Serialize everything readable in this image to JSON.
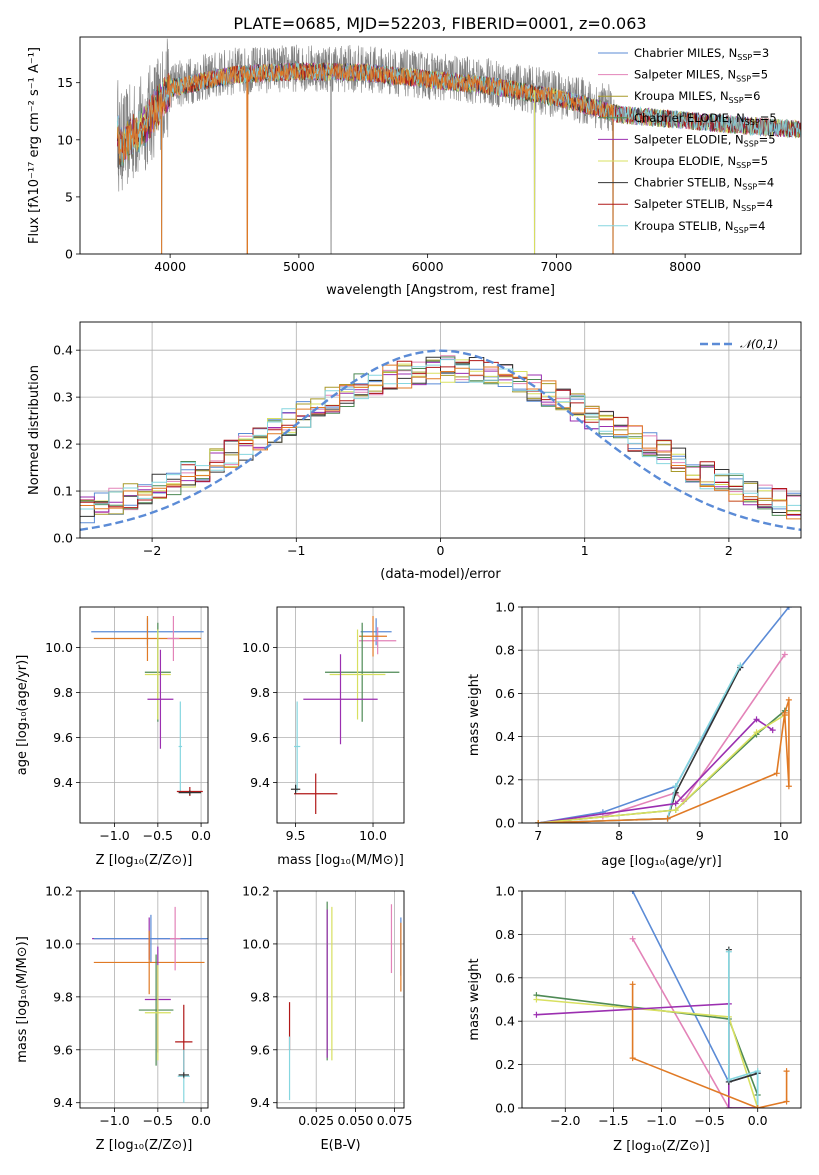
{
  "figure": {
    "title": "PLATE=0685, MJD=52203, FIBERID=0001, z=0.063"
  },
  "colors": {
    "Chabrier MILES": "#5b8bd6",
    "Salpeter MILES": "#e383b8",
    "Kroupa MILES": "#a89a2a",
    "Chabrier ELODIE": "#4e8a55",
    "Salpeter ELODIE": "#9b2fb0",
    "Kroupa ELODIE": "#d8e060",
    "Chabrier STELIB": "#333333",
    "Salpeter STELIB": "#b01818",
    "Kroupa STELIB": "#86d6df",
    "data": "#808080",
    "orange": "#e07a25"
  },
  "chart_data": [
    {
      "id": "spectrum",
      "type": "line",
      "xlabel": "wavelength [Angstrom, rest frame]",
      "ylabel": "Flux [fλ10⁻¹⁷ erg cm⁻² s⁻¹ A⁻¹]",
      "xlim": [
        3300,
        8900
      ],
      "ylim": [
        0,
        19
      ],
      "xticks": [
        4000,
        5000,
        6000,
        7000,
        8000
      ],
      "yticks": [
        0,
        5,
        10,
        15
      ],
      "legend_position": "top-right",
      "legend": [
        {
          "name": "Chabrier MILES, N",
          "sub": "SSP",
          "suffix": "=3",
          "color": "#5b8bd6"
        },
        {
          "name": "Salpeter MILES, N",
          "sub": "SSP",
          "suffix": "=5",
          "color": "#e383b8"
        },
        {
          "name": "Kroupa MILES, N",
          "sub": "SSP",
          "suffix": "=6",
          "color": "#a89a2a"
        },
        {
          "name": "Chabrier ELODIE, N",
          "sub": "SSP",
          "suffix": "=5",
          "color": "#4e8a55"
        },
        {
          "name": "Salpeter ELODIE, N",
          "sub": "SSP",
          "suffix": "=5",
          "color": "#9b2fb0"
        },
        {
          "name": "Kroupa ELODIE, N",
          "sub": "SSP",
          "suffix": "=5",
          "color": "#d8e060"
        },
        {
          "name": "Chabrier STELIB, N",
          "sub": "SSP",
          "suffix": "=4",
          "color": "#333333"
        },
        {
          "name": "Salpeter STELIB, N",
          "sub": "SSP",
          "suffix": "=4",
          "color": "#b01818"
        },
        {
          "name": "Kroupa STELIB, N",
          "sub": "SSP",
          "suffix": "=4",
          "color": "#86d6df"
        }
      ],
      "continuum": [
        [
          3600,
          9.5
        ],
        [
          3800,
          11.5
        ],
        [
          4000,
          14.8
        ],
        [
          4500,
          16.0
        ],
        [
          5000,
          16.3
        ],
        [
          5500,
          16.2
        ],
        [
          6000,
          15.6
        ],
        [
          6500,
          15.0
        ],
        [
          7000,
          14.0
        ],
        [
          7500,
          12.5
        ],
        [
          8000,
          12.0
        ],
        [
          8500,
          11.5
        ],
        [
          8900,
          11.2
        ]
      ],
      "data_range": [
        3590,
        7450
      ],
      "absorption": [
        [
          3934,
          0
        ],
        [
          4600,
          0
        ],
        [
          5250,
          0
        ],
        [
          6830,
          0
        ],
        [
          7440,
          0
        ]
      ]
    },
    {
      "id": "residuals",
      "type": "histogram",
      "xlabel": "(data-model)/error",
      "ylabel": "Normed distribution",
      "xlim": [
        -2.5,
        2.5
      ],
      "ylim": [
        0,
        0.46
      ],
      "xticks": [
        -2,
        -1,
        0,
        1,
        2
      ],
      "yticks": [
        0.0,
        0.1,
        0.2,
        0.3,
        0.4
      ],
      "legend": "𝒩(0,1)",
      "legend_position": "top-right",
      "grid": true,
      "bin_width": 0.1
    },
    {
      "id": "age-vs-Z",
      "type": "scatter",
      "xlabel": "Z [log₁₀(Z/Z⊙)]",
      "ylabel": "age  [log₁₀(age/yr)]",
      "xlim": [
        -1.4,
        0.08
      ],
      "ylim": [
        9.22,
        10.18
      ],
      "xticks": [
        -1.0,
        -0.5,
        0.0
      ],
      "yticks": [
        9.4,
        9.6,
        9.8,
        10.0
      ],
      "grid": true,
      "points": [
        {
          "x": -0.62,
          "y": 10.07,
          "xerr": 0.65,
          "yerr": 0.06,
          "color": "#5b8bd6"
        },
        {
          "x": -0.62,
          "y": 10.04,
          "xerr": 0.62,
          "yerr": 0.1,
          "color": "#e07a25"
        },
        {
          "x": -0.32,
          "y": 10.04,
          "xerr": 0.07,
          "yerr": 0.1,
          "color": "#e383b8"
        },
        {
          "x": -0.5,
          "y": 9.89,
          "xerr": 0.15,
          "yerr": 0.22,
          "color": "#4e8a55"
        },
        {
          "x": -0.5,
          "y": 9.88,
          "xerr": 0.15,
          "yerr": 0.2,
          "color": "#d8e060"
        },
        {
          "x": -0.47,
          "y": 9.77,
          "xerr": 0.15,
          "yerr": 0.22,
          "color": "#9b2fb0"
        },
        {
          "x": -0.24,
          "y": 9.56,
          "xerr": 0.02,
          "yerr": 0.2,
          "color": "#86d6df"
        },
        {
          "x": -0.13,
          "y": 9.36,
          "xerr": 0.15,
          "yerr": 0.02,
          "color": "#b01818"
        },
        {
          "x": -0.13,
          "y": 9.355,
          "xerr": 0.13,
          "yerr": 0.01,
          "color": "#333333"
        }
      ]
    },
    {
      "id": "age-vs-mass",
      "type": "scatter",
      "xlabel": "mass [log₁₀(M/M⊙)]",
      "ylabel": "",
      "xlim": [
        9.38,
        10.2
      ],
      "ylim": [
        9.22,
        10.18
      ],
      "xticks": [
        9.5,
        10.0
      ],
      "yticks": [
        9.4,
        9.6,
        9.8,
        10.0
      ],
      "grid": true,
      "points": [
        {
          "x": 10.02,
          "y": 10.07,
          "xerr": 0.1,
          "yerr": 0.06,
          "color": "#5b8bd6"
        },
        {
          "x": 10.03,
          "y": 10.03,
          "xerr": 0.12,
          "yerr": 0.06,
          "color": "#e383b8"
        },
        {
          "x": 10.0,
          "y": 10.05,
          "xerr": 0.09,
          "yerr": 0.09,
          "color": "#e07a25"
        },
        {
          "x": 9.93,
          "y": 9.89,
          "xerr": 0.24,
          "yerr": 0.22,
          "color": "#4e8a55"
        },
        {
          "x": 9.9,
          "y": 9.88,
          "xerr": 0.18,
          "yerr": 0.2,
          "color": "#d8e060"
        },
        {
          "x": 9.79,
          "y": 9.77,
          "xerr": 0.24,
          "yerr": 0.2,
          "color": "#9b2fb0"
        },
        {
          "x": 9.51,
          "y": 9.56,
          "xerr": 0.02,
          "yerr": 0.2,
          "color": "#86d6df"
        },
        {
          "x": 9.63,
          "y": 9.35,
          "xerr": 0.14,
          "yerr": 0.09,
          "color": "#b01818"
        },
        {
          "x": 9.5,
          "y": 9.37,
          "xerr": 0.03,
          "yerr": 0.02,
          "color": "#333333"
        }
      ]
    },
    {
      "id": "massweight-vs-age",
      "type": "line",
      "xlabel": "age  [log₁₀(age/yr)]",
      "ylabel": "mass weight",
      "xlim": [
        6.8,
        10.25
      ],
      "ylim": [
        0,
        1.0
      ],
      "xticks": [
        7,
        8,
        9,
        10
      ],
      "yticks": [
        0.0,
        0.2,
        0.4,
        0.6,
        0.8,
        1.0
      ],
      "grid": true,
      "series": [
        {
          "color": "#5b8bd6",
          "x": [
            7.0,
            7.8,
            8.7,
            9.5,
            10.1
          ],
          "y": [
            0.0,
            0.05,
            0.17,
            0.72,
            1.0
          ]
        },
        {
          "color": "#e383b8",
          "x": [
            7.0,
            7.8,
            8.7,
            8.8,
            10.05
          ],
          "y": [
            0.0,
            0.03,
            0.14,
            0.1,
            0.78
          ]
        },
        {
          "color": "#333333",
          "x": [
            7.0,
            8.6,
            8.7,
            9.5
          ],
          "y": [
            0.0,
            0.02,
            0.14,
            0.72
          ]
        },
        {
          "color": "#86d6df",
          "x": [
            7.0,
            8.6,
            8.7,
            9.5
          ],
          "y": [
            0.0,
            0.02,
            0.17,
            0.73
          ]
        },
        {
          "color": "#9b2fb0",
          "x": [
            7.0,
            8.7,
            9.7,
            9.9
          ],
          "y": [
            0.0,
            0.09,
            0.48,
            0.43
          ]
        },
        {
          "color": "#4e8a55",
          "x": [
            7.0,
            8.7,
            9.7,
            10.05
          ],
          "y": [
            0.0,
            0.06,
            0.41,
            0.52
          ]
        },
        {
          "color": "#d8e060",
          "x": [
            7.0,
            8.7,
            9.7,
            10.05
          ],
          "y": [
            0.0,
            0.06,
            0.42,
            0.5
          ]
        },
        {
          "color": "#e07a25",
          "x": [
            7.0,
            8.6,
            9.95,
            10.05,
            10.1,
            10.1,
            10.05
          ],
          "y": [
            0.0,
            0.02,
            0.23,
            0.51,
            0.57,
            0.17,
            0.5
          ]
        }
      ]
    },
    {
      "id": "mass-vs-Z",
      "type": "scatter",
      "xlabel": "Z [log₁₀(Z/Z⊙)]",
      "ylabel": "mass [log₁₀(M/M⊙)]",
      "xlim": [
        -1.4,
        0.08
      ],
      "ylim": [
        9.38,
        10.2
      ],
      "xticks": [
        -1.0,
        -0.5,
        0.0
      ],
      "yticks": [
        9.4,
        9.6,
        9.8,
        10.0,
        10.2
      ],
      "grid": true,
      "points": [
        {
          "x": -0.6,
          "y": 10.02,
          "xerr": 0.66,
          "yerr": 0.08,
          "color": "#9b2fb0"
        },
        {
          "x": -0.58,
          "y": 10.02,
          "xerr": 0.66,
          "yerr": 0.09,
          "color": "#5b8bd6"
        },
        {
          "x": -0.6,
          "y": 9.93,
          "xerr": 0.64,
          "yerr": 0.12,
          "color": "#e07a25"
        },
        {
          "x": -0.3,
          "y": 10.02,
          "xerr": 0.06,
          "yerr": 0.12,
          "color": "#e383b8"
        },
        {
          "x": -0.5,
          "y": 9.79,
          "xerr": 0.15,
          "yerr": 0.2,
          "color": "#9b2fb0"
        },
        {
          "x": -0.52,
          "y": 9.75,
          "xerr": 0.2,
          "yerr": 0.21,
          "color": "#4e8a55"
        },
        {
          "x": -0.5,
          "y": 9.74,
          "xerr": 0.15,
          "yerr": 0.18,
          "color": "#d8e060"
        },
        {
          "x": -0.2,
          "y": 9.63,
          "xerr": 0.1,
          "yerr": 0.14,
          "color": "#b01818"
        },
        {
          "x": -0.2,
          "y": 9.5,
          "xerr": 0.07,
          "yerr": 0.1,
          "color": "#86d6df"
        },
        {
          "x": -0.2,
          "y": 9.505,
          "xerr": 0.06,
          "yerr": 0.01,
          "color": "#333333"
        }
      ]
    },
    {
      "id": "mass-vs-EBV",
      "type": "scatter",
      "xlabel": "E(B-V)",
      "ylabel": "",
      "xlim": [
        0.0,
        0.081
      ],
      "ylim": [
        9.38,
        10.2
      ],
      "xticks": [
        0.025,
        0.05,
        0.075
      ],
      "xticklabels": [
        "0.025",
        "0.050",
        "0.075"
      ],
      "yticks": [
        9.4,
        9.6,
        9.8,
        10.0,
        10.2
      ],
      "grid": true,
      "points": [
        {
          "x": 0.008,
          "y": 9.69,
          "xerr": 0,
          "yerr": 0.09,
          "color": "#b01818"
        },
        {
          "x": 0.008,
          "y": 9.53,
          "xerr": 0,
          "yerr": 0.12,
          "color": "#86d6df"
        },
        {
          "x": 0.032,
          "y": 9.86,
          "xerr": 0,
          "yerr": 0.3,
          "color": "#4e8a55"
        },
        {
          "x": 0.032,
          "y": 9.85,
          "xerr": 0,
          "yerr": 0.28,
          "color": "#9b2fb0"
        },
        {
          "x": 0.035,
          "y": 9.85,
          "xerr": 0,
          "yerr": 0.29,
          "color": "#d8e060"
        },
        {
          "x": 0.073,
          "y": 10.02,
          "xerr": 0,
          "yerr": 0.13,
          "color": "#e383b8"
        },
        {
          "x": 0.079,
          "y": 9.99,
          "xerr": 0,
          "yerr": 0.11,
          "color": "#5b8bd6"
        },
        {
          "x": 0.079,
          "y": 9.95,
          "xerr": 0,
          "yerr": 0.13,
          "color": "#e07a25"
        }
      ]
    },
    {
      "id": "massweight-vs-Z",
      "type": "line",
      "xlabel": "Z [log₁₀(Z/Z⊙)]",
      "ylabel": "mass weight",
      "xlim": [
        -2.45,
        0.45
      ],
      "ylim": [
        0,
        1.0
      ],
      "xticks": [
        -2.0,
        -1.5,
        -1.0,
        -0.5,
        0.0
      ],
      "yticks": [
        0.0,
        0.2,
        0.4,
        0.6,
        0.8,
        1.0
      ],
      "grid": true,
      "series": [
        {
          "color": "#5b8bd6",
          "x": [
            -1.3,
            -0.3,
            0.0,
            0.0
          ],
          "y": [
            1.0,
            0.12,
            0.16,
            0.0
          ]
        },
        {
          "color": "#e383b8",
          "x": [
            -1.3,
            -0.3,
            0.0
          ],
          "y": [
            0.78,
            0.0,
            0.0
          ]
        },
        {
          "color": "#4e8a55",
          "x": [
            -2.3,
            -0.3,
            0.0,
            0.0
          ],
          "y": [
            0.52,
            0.41,
            0.06,
            0.0
          ]
        },
        {
          "color": "#d8e060",
          "x": [
            -2.3,
            -0.3,
            0.0
          ],
          "y": [
            0.5,
            0.42,
            0.0
          ]
        },
        {
          "color": "#9b2fb0",
          "x": [
            -2.3,
            -0.3,
            -0.3,
            0.0
          ],
          "y": [
            0.43,
            0.48,
            0.0,
            0.0
          ]
        },
        {
          "color": "#333333",
          "x": [
            -0.3,
            -0.3,
            0.0
          ],
          "y": [
            0.73,
            0.12,
            0.16
          ]
        },
        {
          "color": "#86d6df",
          "x": [
            -0.3,
            -0.3,
            0.0,
            0.0
          ],
          "y": [
            0.72,
            0.13,
            0.17,
            0.0
          ]
        },
        {
          "color": "#e07a25",
          "x": [
            -1.3,
            -1.3,
            0.0,
            0.3,
            0.3
          ],
          "y": [
            0.57,
            0.23,
            0.0,
            0.03,
            0.17
          ]
        }
      ]
    }
  ]
}
